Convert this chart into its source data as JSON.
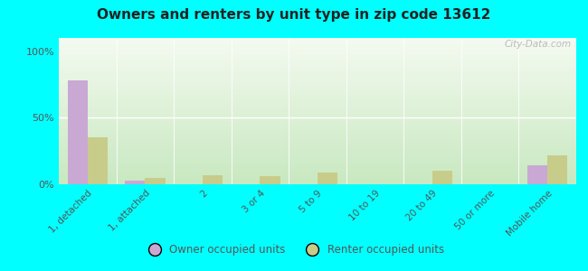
{
  "title": "Owners and renters by unit type in zip code 13612",
  "categories": [
    "1, detached",
    "1, attached",
    "2",
    "3 or 4",
    "5 to 9",
    "10 to 19",
    "20 to 49",
    "50 or more",
    "Mobile home"
  ],
  "owner_values": [
    78,
    3,
    0,
    0,
    0,
    0,
    0,
    0,
    14
  ],
  "renter_values": [
    35,
    5,
    7,
    6,
    9,
    0,
    10,
    0,
    22
  ],
  "owner_color": "#c9a8d4",
  "renter_color": "#c8cc8a",
  "yticks": [
    0,
    50,
    100
  ],
  "ytick_labels": [
    "0%",
    "50%",
    "100%"
  ],
  "ylim": [
    0,
    110
  ],
  "outer_bg": "#00ffff",
  "legend_owner": "Owner occupied units",
  "legend_renter": "Renter occupied units",
  "watermark": "City-Data.com"
}
